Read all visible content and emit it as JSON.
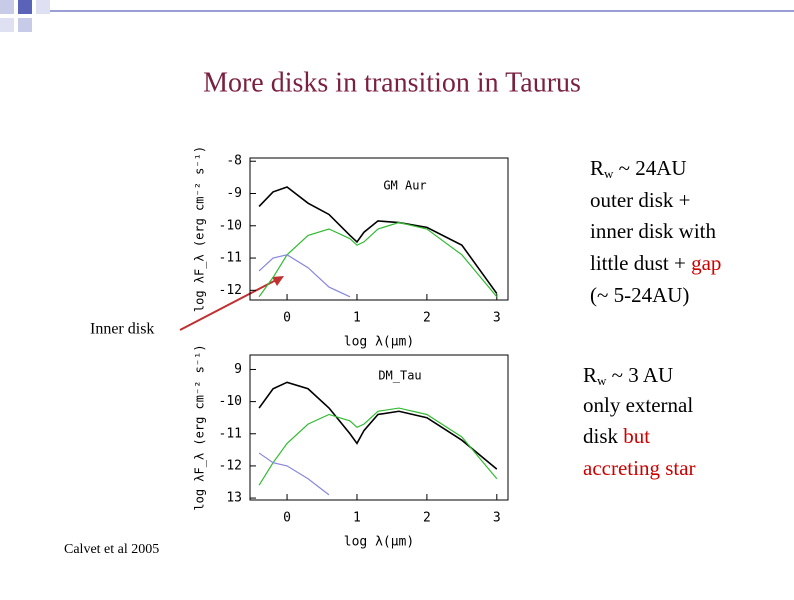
{
  "title": "More disks in transition in Taurus",
  "inner_disk_label": "Inner disk",
  "caption": "Calvet et al 2005",
  "note1": {
    "r": "R",
    "sub": "w",
    "rest": " ~ 24AU",
    "lines": [
      "outer disk +",
      "inner disk with"
    ],
    "dust": "little dust + ",
    "gap": "gap",
    "range": "(~ 5-24AU)"
  },
  "note2": {
    "r": "R",
    "sub": "w",
    "rest": " ~ 3 AU",
    "lines": [
      "only external"
    ],
    "disk": "disk ",
    "but": "but",
    "accreting": "accreting star"
  },
  "chart_data": [
    {
      "type": "line",
      "title": "GM Aur",
      "xlabel": "log λ(μm)",
      "ylabel": "log λF_λ (erg cm⁻² s⁻¹)",
      "x": [
        -0.4,
        -0.2,
        0,
        0.3,
        0.6,
        0.9,
        1.0,
        1.1,
        1.3,
        1.6,
        2.0,
        2.5,
        3.0
      ],
      "xlim": [
        -0.53,
        3.16
      ],
      "ylim": [
        -12.3,
        -7.9
      ],
      "xticks": [
        0,
        1,
        2,
        3
      ],
      "yticks": [
        -8,
        -9,
        -10,
        -11,
        -12
      ],
      "series": [
        {
          "color": "#000000",
          "values": [
            -9.4,
            -8.95,
            -8.8,
            -9.3,
            -9.65,
            -10.3,
            -10.5,
            -10.2,
            -9.85,
            -9.9,
            -10.05,
            -10.6,
            -12.1
          ]
        },
        {
          "color": "#33bb33",
          "values": [
            -12.2,
            -11.6,
            -10.9,
            -10.3,
            -10.1,
            -10.4,
            -10.6,
            -10.5,
            -10.1,
            -9.9,
            -10.1,
            -10.9,
            -12.2
          ]
        },
        {
          "color": "#8888dd",
          "values": [
            -11.4,
            -11.0,
            -10.9,
            -11.3,
            -11.9,
            -12.2,
            null,
            null,
            null,
            null,
            null,
            null,
            null
          ]
        }
      ]
    },
    {
      "type": "line",
      "title": "DM_Tau",
      "xlabel": "log λ(μm)",
      "ylabel": "log λF_λ (erg cm⁻² s⁻¹)",
      "x": [
        -0.4,
        -0.2,
        0,
        0.3,
        0.6,
        0.9,
        1.0,
        1.1,
        1.3,
        1.6,
        2.0,
        2.5,
        3.0
      ],
      "xlim": [
        -0.53,
        3.16
      ],
      "ylim": [
        -13.06,
        -8.55
      ],
      "xticks": [
        0,
        1,
        2,
        3
      ],
      "yticks": [
        {
          "value": -9,
          "label": "9"
        },
        -10,
        -11,
        -12,
        {
          "value": -13,
          "label": "13"
        }
      ],
      "series": [
        {
          "color": "#000000",
          "values": [
            -10.2,
            -9.6,
            -9.4,
            -9.6,
            -10.2,
            -11.0,
            -11.3,
            -10.9,
            -10.4,
            -10.3,
            -10.5,
            -11.2,
            -12.1
          ]
        },
        {
          "color": "#33bb33",
          "values": [
            -12.6,
            -11.9,
            -11.3,
            -10.7,
            -10.4,
            -10.6,
            -10.8,
            -10.7,
            -10.3,
            -10.2,
            -10.4,
            -11.1,
            -12.4
          ]
        },
        {
          "color": "#8888dd",
          "values": [
            -11.6,
            -11.9,
            -12.0,
            -12.4,
            -12.9,
            null,
            null,
            null,
            null,
            null,
            null,
            null,
            null
          ]
        }
      ]
    }
  ]
}
